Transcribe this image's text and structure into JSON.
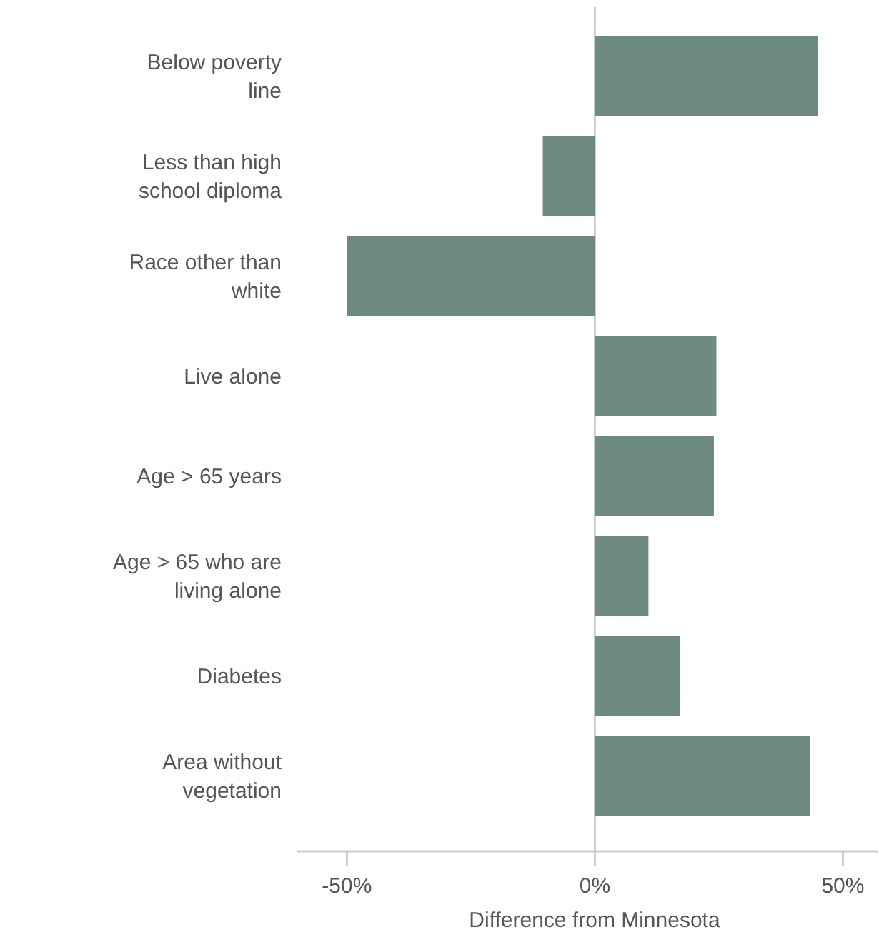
{
  "chart_data": {
    "type": "bar",
    "orientation": "horizontal",
    "xlabel": "Difference from Minnesota",
    "categories": [
      "Below poverty line",
      "Less than high school diploma",
      "Race other than white",
      "Live alone",
      "Age > 65 years",
      "Age > 65 who are living alone",
      "Diabetes",
      "Area without vegetation"
    ],
    "values": [
      45,
      -10.5,
      -50,
      24.5,
      24,
      10.8,
      17.2,
      43.4
    ],
    "color": "#6f8a80",
    "xlim": [
      -60,
      57
    ],
    "xticks": [
      {
        "value": -50,
        "label": "-50%"
      },
      {
        "value": 0,
        "label": "0%"
      },
      {
        "value": 50,
        "label": "50%"
      }
    ],
    "ref_lines": [
      {
        "axis": "x",
        "value": 0,
        "color": "#cccccc"
      }
    ],
    "grid": false
  }
}
